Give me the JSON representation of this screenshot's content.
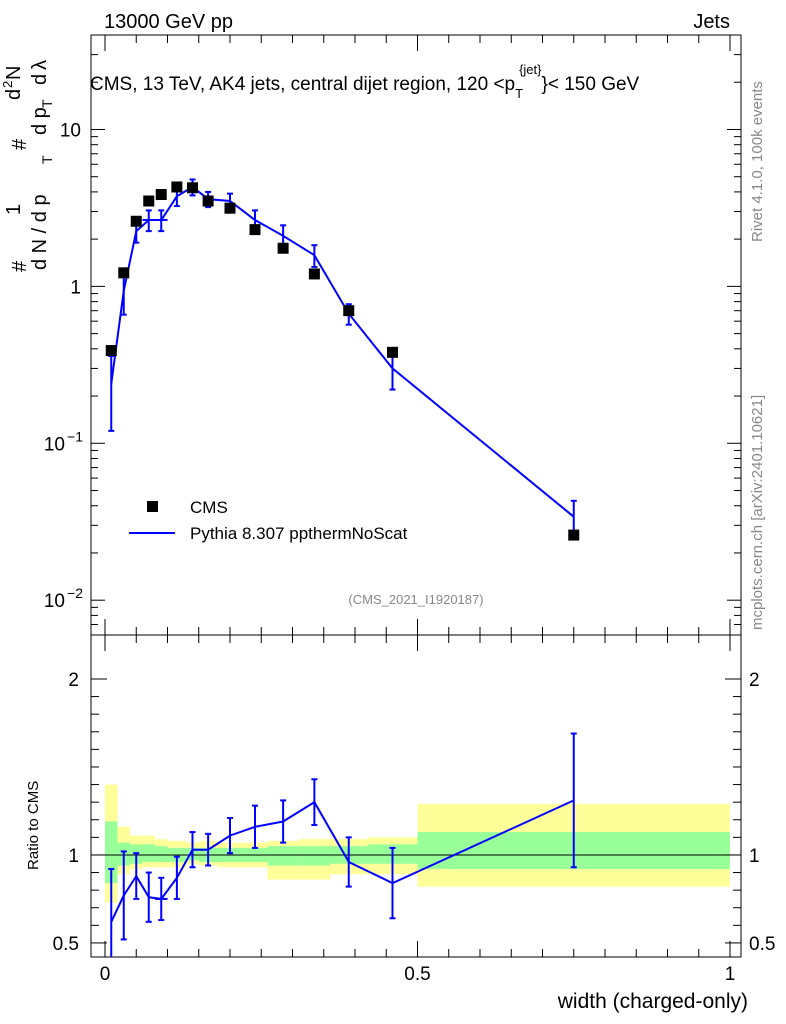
{
  "header": {
    "left": "13000 GeV pp",
    "right": "Jets"
  },
  "side_labels": {
    "rivet": "Rivet 4.1.0,  100k events",
    "mcplots": "mcplots.cern.ch [arXiv:2401.10621]"
  },
  "chart_data": {
    "type": "line",
    "title": "CMS, 13 TeV, AK4 jets, central dijet region, 120 <p_T^{jet}< 150 GeV",
    "title_parts": {
      "prefix": "CMS, 13 TeV, AK4 jets, central dijet region, 120 <p",
      "sub": "T",
      "sup": "{jet}",
      "suffix": "}< 150 GeV"
    },
    "ylabel": "# (1 / (d N / d p_T)) # (d^2N / (d p_T d λ))",
    "ylabel_parts": {
      "hash": "#",
      "one": "1",
      "den_a": "d N / d p",
      "den_sub": "T",
      "num2_a": "d",
      "num2_sup": "2",
      "num2_b": "N",
      "den2_a": "d p",
      "den2_sub": "T",
      "den2_b": "d",
      "lambda": "λ"
    },
    "xlabel": "width (charged-only)",
    "analysis_id": "(CMS_2021_I1920187)",
    "xlim": [
      0,
      1
    ],
    "ylim_log": [
      0.006,
      40
    ],
    "x_ticks": [
      "0",
      "0.5",
      "1"
    ],
    "y_ticks": [
      {
        "base": "10",
        "exp": "−2",
        "value": 0.01
      },
      {
        "base": "10",
        "exp": "−1",
        "value": 0.1
      },
      {
        "base": "1",
        "exp": "",
        "value": 1
      },
      {
        "base": "10",
        "exp": "",
        "value": 10
      }
    ],
    "legend": [
      {
        "name": "CMS",
        "style": "marker"
      },
      {
        "name": "Pythia 8.307 ppthermNoScat",
        "style": "line"
      }
    ],
    "legend_position": "lower-left",
    "series": [
      {
        "name": "CMS",
        "color": "#000000",
        "x": [
          0.01,
          0.03,
          0.05,
          0.07,
          0.09,
          0.115,
          0.14,
          0.165,
          0.2,
          0.24,
          0.285,
          0.335,
          0.39,
          0.46,
          0.75
        ],
        "y": [
          0.39,
          1.22,
          2.6,
          3.5,
          3.85,
          4.3,
          4.25,
          3.5,
          3.15,
          2.3,
          1.75,
          1.2,
          0.7,
          0.38,
          0.026
        ]
      },
      {
        "name": "Pythia 8.307 ppthermNoScat",
        "color": "#0000ff",
        "x": [
          0.01,
          0.03,
          0.05,
          0.07,
          0.09,
          0.115,
          0.14,
          0.165,
          0.2,
          0.24,
          0.285,
          0.335,
          0.39,
          0.46,
          0.75
        ],
        "y": [
          0.24,
          0.94,
          2.25,
          2.65,
          2.65,
          3.75,
          4.3,
          3.6,
          3.5,
          2.65,
          2.1,
          1.58,
          0.67,
          0.3,
          0.034
        ],
        "err": [
          0.12,
          0.28,
          0.35,
          0.4,
          0.4,
          0.5,
          0.5,
          0.4,
          0.4,
          0.4,
          0.35,
          0.25,
          0.1,
          0.08,
          0.009
        ],
        "xerr": [
          0,
          0,
          0,
          0.01,
          0.01,
          0,
          0,
          0,
          0,
          0,
          0,
          0,
          0,
          0,
          0
        ]
      }
    ],
    "ratio": {
      "ylabel": "Ratio to CMS",
      "ylim": [
        0.42,
        2.25
      ],
      "y_ticks": [
        "0.5",
        "1",
        "2"
      ],
      "y_tick_values": [
        0.5,
        1,
        2
      ],
      "reference": 1,
      "bin_edges": [
        0.0,
        0.02,
        0.04,
        0.06,
        0.08,
        0.1,
        0.13,
        0.15,
        0.18,
        0.22,
        0.26,
        0.31,
        0.36,
        0.42,
        0.5,
        1.0
      ],
      "band_total": [
        [
          0.73,
          1.4
        ],
        [
          0.89,
          1.16
        ],
        [
          0.92,
          1.11
        ],
        [
          0.93,
          1.11
        ],
        [
          0.93,
          1.09
        ],
        [
          0.93,
          1.08
        ],
        [
          0.95,
          1.07
        ],
        [
          0.94,
          1.08
        ],
        [
          0.93,
          1.07
        ],
        [
          0.93,
          1.07
        ],
        [
          0.86,
          1.08
        ],
        [
          0.86,
          1.09
        ],
        [
          0.89,
          1.09
        ],
        [
          0.89,
          1.1
        ],
        [
          0.82,
          1.29
        ]
      ],
      "band_stat": [
        [
          0.84,
          1.19
        ],
        [
          0.94,
          1.07
        ],
        [
          0.95,
          1.06
        ],
        [
          0.96,
          1.06
        ],
        [
          0.96,
          1.05
        ],
        [
          0.96,
          1.04
        ],
        [
          0.97,
          1.04
        ],
        [
          0.96,
          1.04
        ],
        [
          0.96,
          1.04
        ],
        [
          0.96,
          1.04
        ],
        [
          0.94,
          1.05
        ],
        [
          0.94,
          1.05
        ],
        [
          0.95,
          1.05
        ],
        [
          0.95,
          1.06
        ],
        [
          0.92,
          1.13
        ]
      ],
      "ratio_x": [
        0.01,
        0.03,
        0.05,
        0.07,
        0.09,
        0.115,
        0.14,
        0.165,
        0.2,
        0.24,
        0.285,
        0.335,
        0.39,
        0.46,
        0.75
      ],
      "ratio_y": [
        0.62,
        0.77,
        0.88,
        0.76,
        0.75,
        0.87,
        1.03,
        1.03,
        1.11,
        1.16,
        1.19,
        1.3,
        0.96,
        0.84,
        1.31
      ],
      "ratio_err": [
        0.3,
        0.25,
        0.13,
        0.14,
        0.12,
        0.12,
        0.1,
        0.09,
        0.1,
        0.12,
        0.12,
        0.13,
        0.14,
        0.2,
        0.38
      ],
      "ratio_xerr": [
        0,
        0,
        0,
        0,
        0.01,
        0,
        0,
        0,
        0,
        0,
        0,
        0,
        0,
        0,
        0
      ]
    },
    "colors": {
      "band_total": "#ffff99",
      "band_stat": "#99ff99",
      "mc_line": "#0000ff",
      "data_marker": "#000000"
    }
  }
}
